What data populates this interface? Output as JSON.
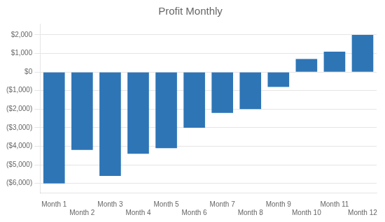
{
  "chart_data": {
    "type": "bar",
    "title": "Profit Monthly",
    "categories": [
      "Month 1",
      "Month 2",
      "Month 3",
      "Month 4",
      "Month 5",
      "Month 6",
      "Month 7",
      "Month 8",
      "Month 9",
      "Month 10",
      "Month 11",
      "Month 12"
    ],
    "values": [
      -6000,
      -4200,
      -5600,
      -4400,
      -4100,
      -3000,
      -2200,
      -2000,
      -800,
      700,
      1100,
      2000
    ],
    "color": "#2E75B6",
    "ylim": [
      -6500,
      2600
    ],
    "yticks": [
      {
        "value": -6000,
        "label": "($6,000)"
      },
      {
        "value": -5000,
        "label": "($5,000)"
      },
      {
        "value": -4000,
        "label": "($4,000)"
      },
      {
        "value": -3000,
        "label": "($3,000)"
      },
      {
        "value": -2000,
        "label": "($2,000)"
      },
      {
        "value": -1000,
        "label": "($1,000)"
      },
      {
        "value": 0,
        "label": "$0"
      },
      {
        "value": 1000,
        "label": "$1,000"
      },
      {
        "value": 2000,
        "label": "$2,000"
      }
    ],
    "grid": true
  }
}
